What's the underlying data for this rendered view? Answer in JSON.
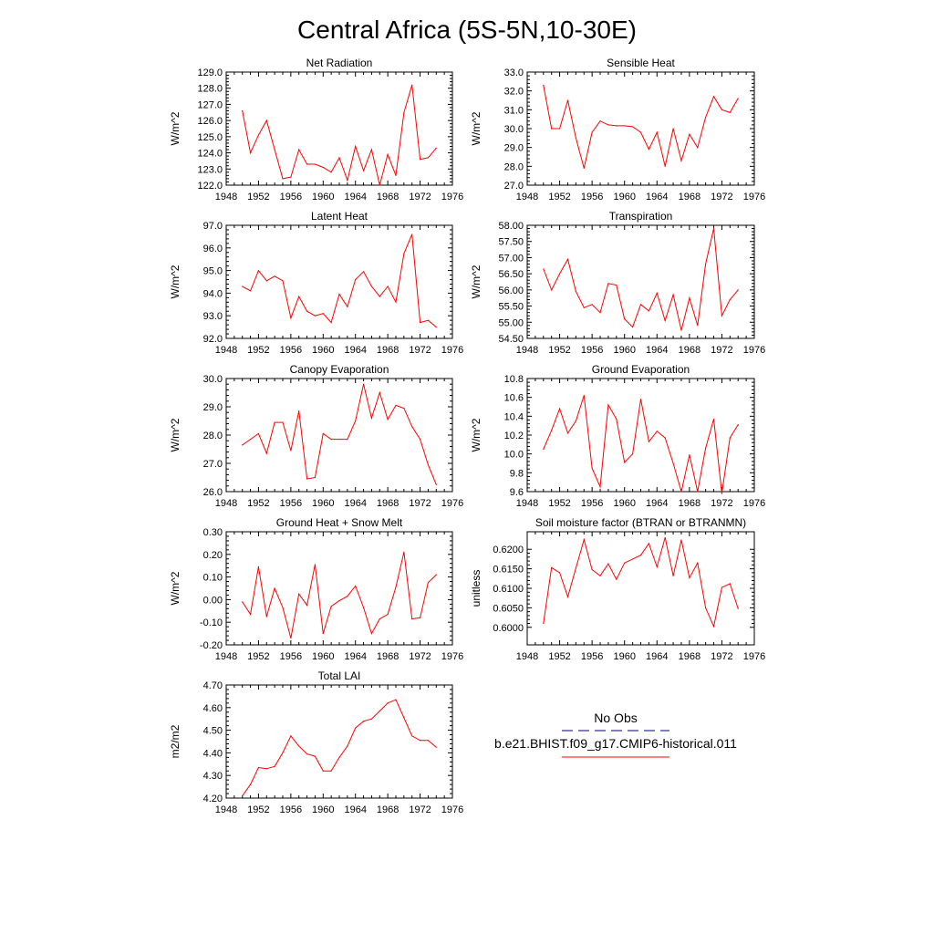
{
  "figure": {
    "title": "Central Africa (5S-5N,10-30E)",
    "series_color": "#ff0000",
    "obs_color": "#000080"
  },
  "legend": {
    "obs_label": "No Obs",
    "model_label": "b.e21.BHIST.f09_g17.CMIP6-historical.011"
  },
  "chart_data": [
    {
      "type": "line",
      "title": "Net Radiation",
      "ylabel": "W/m^2",
      "xlim": [
        1948,
        1976
      ],
      "xticks": [
        1948,
        1952,
        1956,
        1960,
        1964,
        1968,
        1972,
        1976
      ],
      "ylim": [
        122.0,
        129.0
      ],
      "yticks": [
        122.0,
        123.0,
        124.0,
        125.0,
        126.0,
        127.0,
        128.0,
        129.0
      ],
      "ytick_labels": [
        "122.0",
        "123.0",
        "124.0",
        "125.0",
        "126.0",
        "127.0",
        "128.0",
        "129.0"
      ],
      "x": [
        1950,
        1951,
        1952,
        1953,
        1954,
        1955,
        1956,
        1957,
        1958,
        1959,
        1960,
        1961,
        1962,
        1963,
        1964,
        1965,
        1966,
        1967,
        1968,
        1969,
        1970,
        1971,
        1972,
        1973,
        1974
      ],
      "values": [
        126.6,
        124.0,
        125.1,
        126.0,
        124.2,
        122.4,
        122.5,
        124.2,
        123.3,
        123.3,
        123.1,
        122.8,
        123.7,
        122.3,
        124.4,
        122.9,
        124.2,
        122.0,
        123.9,
        122.6,
        126.5,
        128.2,
        123.6,
        123.7,
        124.3
      ]
    },
    {
      "type": "line",
      "title": "Sensible Heat",
      "ylabel": "W/m^2",
      "xlim": [
        1948,
        1976
      ],
      "xticks": [
        1948,
        1952,
        1956,
        1960,
        1964,
        1968,
        1972,
        1976
      ],
      "ylim": [
        27.0,
        33.0
      ],
      "yticks": [
        27.0,
        28.0,
        29.0,
        30.0,
        31.0,
        32.0,
        33.0
      ],
      "ytick_labels": [
        "27.0",
        "28.0",
        "29.0",
        "30.0",
        "31.0",
        "32.0",
        "33.0"
      ],
      "x": [
        1950,
        1951,
        1952,
        1953,
        1954,
        1955,
        1956,
        1957,
        1958,
        1959,
        1960,
        1961,
        1962,
        1963,
        1964,
        1965,
        1966,
        1967,
        1968,
        1969,
        1970,
        1971,
        1972,
        1973,
        1974
      ],
      "values": [
        32.3,
        30.0,
        30.0,
        31.5,
        29.5,
        27.9,
        29.8,
        30.4,
        30.2,
        30.15,
        30.15,
        30.1,
        29.8,
        28.9,
        29.8,
        28.0,
        30.0,
        28.3,
        29.7,
        29.0,
        30.6,
        31.7,
        31.0,
        30.85,
        31.6
      ]
    },
    {
      "type": "line",
      "title": "Latent Heat",
      "ylabel": "W/m^2",
      "xlim": [
        1948,
        1976
      ],
      "xticks": [
        1948,
        1952,
        1956,
        1960,
        1964,
        1968,
        1972,
        1976
      ],
      "ylim": [
        92.0,
        97.0
      ],
      "yticks": [
        92.0,
        93.0,
        94.0,
        95.0,
        96.0,
        97.0
      ],
      "ytick_labels": [
        "92.0",
        "93.0",
        "94.0",
        "95.0",
        "96.0",
        "97.0"
      ],
      "x": [
        1950,
        1951,
        1952,
        1953,
        1954,
        1955,
        1956,
        1957,
        1958,
        1959,
        1960,
        1961,
        1962,
        1963,
        1964,
        1965,
        1966,
        1967,
        1968,
        1969,
        1970,
        1971,
        1972,
        1973,
        1974
      ],
      "values": [
        94.3,
        94.1,
        95.0,
        94.55,
        94.75,
        94.55,
        92.9,
        93.85,
        93.2,
        93.0,
        93.1,
        92.7,
        93.95,
        93.4,
        94.6,
        94.95,
        94.3,
        93.85,
        94.3,
        93.6,
        95.75,
        96.6,
        92.7,
        92.8,
        92.5
      ]
    },
    {
      "type": "line",
      "title": "Transpiration",
      "ylabel": "W/m^2",
      "xlim": [
        1948,
        1976
      ],
      "xticks": [
        1948,
        1952,
        1956,
        1960,
        1964,
        1968,
        1972,
        1976
      ],
      "ylim": [
        54.5,
        58.0
      ],
      "yticks": [
        54.5,
        55.0,
        55.5,
        56.0,
        56.5,
        57.0,
        57.5,
        58.0
      ],
      "ytick_labels": [
        "54.50",
        "55.00",
        "55.50",
        "56.00",
        "56.50",
        "57.00",
        "57.50",
        "58.00"
      ],
      "x": [
        1950,
        1951,
        1952,
        1953,
        1954,
        1955,
        1956,
        1957,
        1958,
        1959,
        1960,
        1961,
        1962,
        1963,
        1964,
        1965,
        1966,
        1967,
        1968,
        1969,
        1970,
        1971,
        1972,
        1973,
        1974
      ],
      "values": [
        56.65,
        56.0,
        56.5,
        56.95,
        55.95,
        55.45,
        55.55,
        55.3,
        56.2,
        56.15,
        55.1,
        54.85,
        55.55,
        55.35,
        55.9,
        55.05,
        55.85,
        54.75,
        55.75,
        54.9,
        56.8,
        57.9,
        55.2,
        55.7,
        56.0
      ]
    },
    {
      "type": "line",
      "title": "Canopy Evaporation",
      "ylabel": "W/m^2",
      "xlim": [
        1948,
        1976
      ],
      "xticks": [
        1948,
        1952,
        1956,
        1960,
        1964,
        1968,
        1972,
        1976
      ],
      "ylim": [
        26.0,
        30.0
      ],
      "yticks": [
        26.0,
        27.0,
        28.0,
        29.0,
        30.0
      ],
      "ytick_labels": [
        "26.0",
        "27.0",
        "28.0",
        "29.0",
        "30.0"
      ],
      "x": [
        1950,
        1951,
        1952,
        1953,
        1954,
        1955,
        1956,
        1957,
        1958,
        1959,
        1960,
        1961,
        1962,
        1963,
        1964,
        1965,
        1966,
        1967,
        1968,
        1969,
        1970,
        1971,
        1972,
        1973,
        1974
      ],
      "values": [
        27.65,
        27.85,
        28.05,
        27.35,
        28.45,
        28.45,
        27.45,
        28.85,
        26.45,
        26.5,
        28.05,
        27.85,
        27.85,
        27.85,
        28.5,
        29.8,
        28.6,
        29.5,
        28.55,
        29.05,
        28.95,
        28.3,
        27.85,
        26.95,
        26.25
      ]
    },
    {
      "type": "line",
      "title": "Ground Evaporation",
      "ylabel": "W/m^2",
      "xlim": [
        1948,
        1976
      ],
      "xticks": [
        1948,
        1952,
        1956,
        1960,
        1964,
        1968,
        1972,
        1976
      ],
      "ylim": [
        9.6,
        10.8
      ],
      "yticks": [
        9.6,
        9.8,
        10.0,
        10.2,
        10.4,
        10.6,
        10.8
      ],
      "ytick_labels": [
        "9.6",
        "9.8",
        "10.0",
        "10.2",
        "10.4",
        "10.6",
        "10.8"
      ],
      "x": [
        1950,
        1951,
        1952,
        1953,
        1954,
        1955,
        1956,
        1957,
        1958,
        1959,
        1960,
        1961,
        1962,
        1963,
        1964,
        1965,
        1966,
        1967,
        1968,
        1969,
        1970,
        1971,
        1972,
        1973,
        1974
      ],
      "values": [
        10.05,
        10.25,
        10.48,
        10.22,
        10.35,
        10.62,
        9.85,
        9.65,
        10.52,
        10.37,
        9.91,
        10.0,
        10.58,
        10.13,
        10.24,
        10.17,
        9.9,
        9.6,
        9.99,
        9.6,
        10.06,
        10.37,
        9.58,
        10.17,
        10.31
      ]
    },
    {
      "type": "line",
      "title": "Ground Heat + Snow Melt",
      "ylabel": "W/m^2",
      "xlim": [
        1948,
        1976
      ],
      "xticks": [
        1948,
        1952,
        1956,
        1960,
        1964,
        1968,
        1972,
        1976
      ],
      "ylim": [
        -0.2,
        0.3
      ],
      "yticks": [
        -0.2,
        -0.1,
        0.0,
        0.1,
        0.2,
        0.3
      ],
      "ytick_labels": [
        "-0.20",
        "-0.10",
        "0.00",
        "0.10",
        "0.20",
        "0.30"
      ],
      "x": [
        1950,
        1951,
        1952,
        1953,
        1954,
        1955,
        1956,
        1957,
        1958,
        1959,
        1960,
        1961,
        1962,
        1963,
        1964,
        1965,
        1966,
        1967,
        1968,
        1969,
        1970,
        1971,
        1972,
        1973,
        1974
      ],
      "values": [
        -0.01,
        -0.065,
        0.145,
        -0.075,
        0.05,
        -0.035,
        -0.17,
        0.025,
        -0.025,
        0.155,
        -0.15,
        -0.03,
        -0.005,
        0.015,
        0.06,
        -0.035,
        -0.15,
        -0.085,
        -0.065,
        0.055,
        0.21,
        -0.085,
        -0.08,
        0.075,
        0.11
      ]
    },
    {
      "type": "line",
      "title": "Soil moisture factor (BTRAN or BTRANMN)",
      "ylabel": "unitless",
      "xlim": [
        1948,
        1976
      ],
      "xticks": [
        1948,
        1952,
        1956,
        1960,
        1964,
        1968,
        1972,
        1976
      ],
      "ylim": [
        0.5955,
        0.6245
      ],
      "yticks": [
        0.6,
        0.605,
        0.61,
        0.615,
        0.62
      ],
      "ytick_labels": [
        "0.6000",
        "0.6050",
        "0.6100",
        "0.6150",
        "0.6200"
      ],
      "x": [
        1950,
        1951,
        1952,
        1953,
        1954,
        1955,
        1956,
        1957,
        1958,
        1959,
        1960,
        1961,
        1962,
        1963,
        1964,
        1965,
        1966,
        1967,
        1968,
        1969,
        1970,
        1971,
        1972,
        1973,
        1974
      ],
      "values": [
        0.601,
        0.6153,
        0.614,
        0.6078,
        0.6152,
        0.6225,
        0.6148,
        0.6132,
        0.6163,
        0.6123,
        0.6165,
        0.6175,
        0.6185,
        0.6215,
        0.6155,
        0.623,
        0.6132,
        0.6224,
        0.6127,
        0.6165,
        0.605,
        0.6002,
        0.6102,
        0.6112,
        0.6048
      ]
    },
    {
      "type": "line",
      "title": "Total LAI",
      "ylabel": "m2/m2",
      "xlim": [
        1948,
        1976
      ],
      "xticks": [
        1948,
        1952,
        1956,
        1960,
        1964,
        1968,
        1972,
        1976
      ],
      "ylim": [
        4.2,
        4.7
      ],
      "yticks": [
        4.2,
        4.3,
        4.4,
        4.5,
        4.6,
        4.7
      ],
      "ytick_labels": [
        "4.20",
        "4.30",
        "4.40",
        "4.50",
        "4.60",
        "4.70"
      ],
      "x": [
        1950,
        1951,
        1952,
        1953,
        1954,
        1955,
        1956,
        1957,
        1958,
        1959,
        1960,
        1961,
        1962,
        1963,
        1964,
        1965,
        1966,
        1967,
        1968,
        1969,
        1970,
        1971,
        1972,
        1973,
        1974
      ],
      "values": [
        4.21,
        4.26,
        4.335,
        4.33,
        4.34,
        4.4,
        4.475,
        4.43,
        4.395,
        4.385,
        4.32,
        4.32,
        4.38,
        4.43,
        4.51,
        4.54,
        4.55,
        4.585,
        4.62,
        4.635,
        4.555,
        4.475,
        4.455,
        4.455,
        4.425
      ]
    }
  ]
}
